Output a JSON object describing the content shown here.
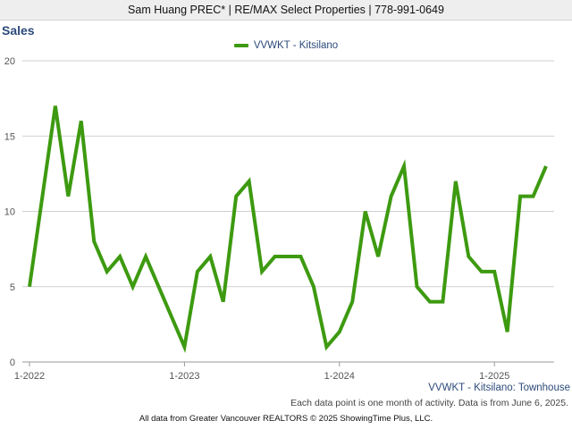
{
  "header": {
    "text": "Sam Huang PREC* | RE/MAX Select Properties | 778-991-0649"
  },
  "colors": {
    "series": "#3d9a10",
    "title": "#2c4a79",
    "grid": "#cfcfcf"
  },
  "chart_data": {
    "type": "line",
    "title": "Sales",
    "legend_position": "top-center",
    "grid": true,
    "xlabel": "",
    "ylabel": "",
    "ylim": [
      0,
      20
    ],
    "yticks": [
      0,
      5,
      10,
      15,
      20
    ],
    "x_tick_labels": [
      "1-2022",
      "1-2023",
      "1-2024",
      "1-2025"
    ],
    "x": [
      "2022-01",
      "2022-02",
      "2022-03",
      "2022-04",
      "2022-05",
      "2022-06",
      "2022-07",
      "2022-08",
      "2022-09",
      "2022-10",
      "2022-11",
      "2022-12",
      "2023-01",
      "2023-02",
      "2023-03",
      "2023-04",
      "2023-05",
      "2023-06",
      "2023-07",
      "2023-08",
      "2023-09",
      "2023-10",
      "2023-11",
      "2023-12",
      "2024-01",
      "2024-02",
      "2024-03",
      "2024-04",
      "2024-05",
      "2024-06",
      "2024-07",
      "2024-08",
      "2024-09",
      "2024-10",
      "2024-11",
      "2024-12",
      "2025-01",
      "2025-02",
      "2025-03",
      "2025-04",
      "2025-05"
    ],
    "series": [
      {
        "name": "VVWKT - Kitsilano",
        "values": [
          5,
          11,
          17,
          11,
          16,
          8,
          6,
          7,
          5,
          7,
          5,
          3,
          1,
          6,
          7,
          4,
          11,
          12,
          6,
          7,
          7,
          7,
          5,
          1,
          2,
          4,
          10,
          7,
          11,
          13,
          5,
          4,
          4,
          12,
          7,
          6,
          6,
          2,
          11,
          11,
          13
        ]
      }
    ]
  },
  "series_caption": "VVWKT - Kitsilano: Townhouse",
  "note": "Each data point is one month of activity. Data is from June 6, 2025.",
  "footer": "All data from Greater Vancouver REALTORS © 2025 ShowingTime Plus, LLC."
}
